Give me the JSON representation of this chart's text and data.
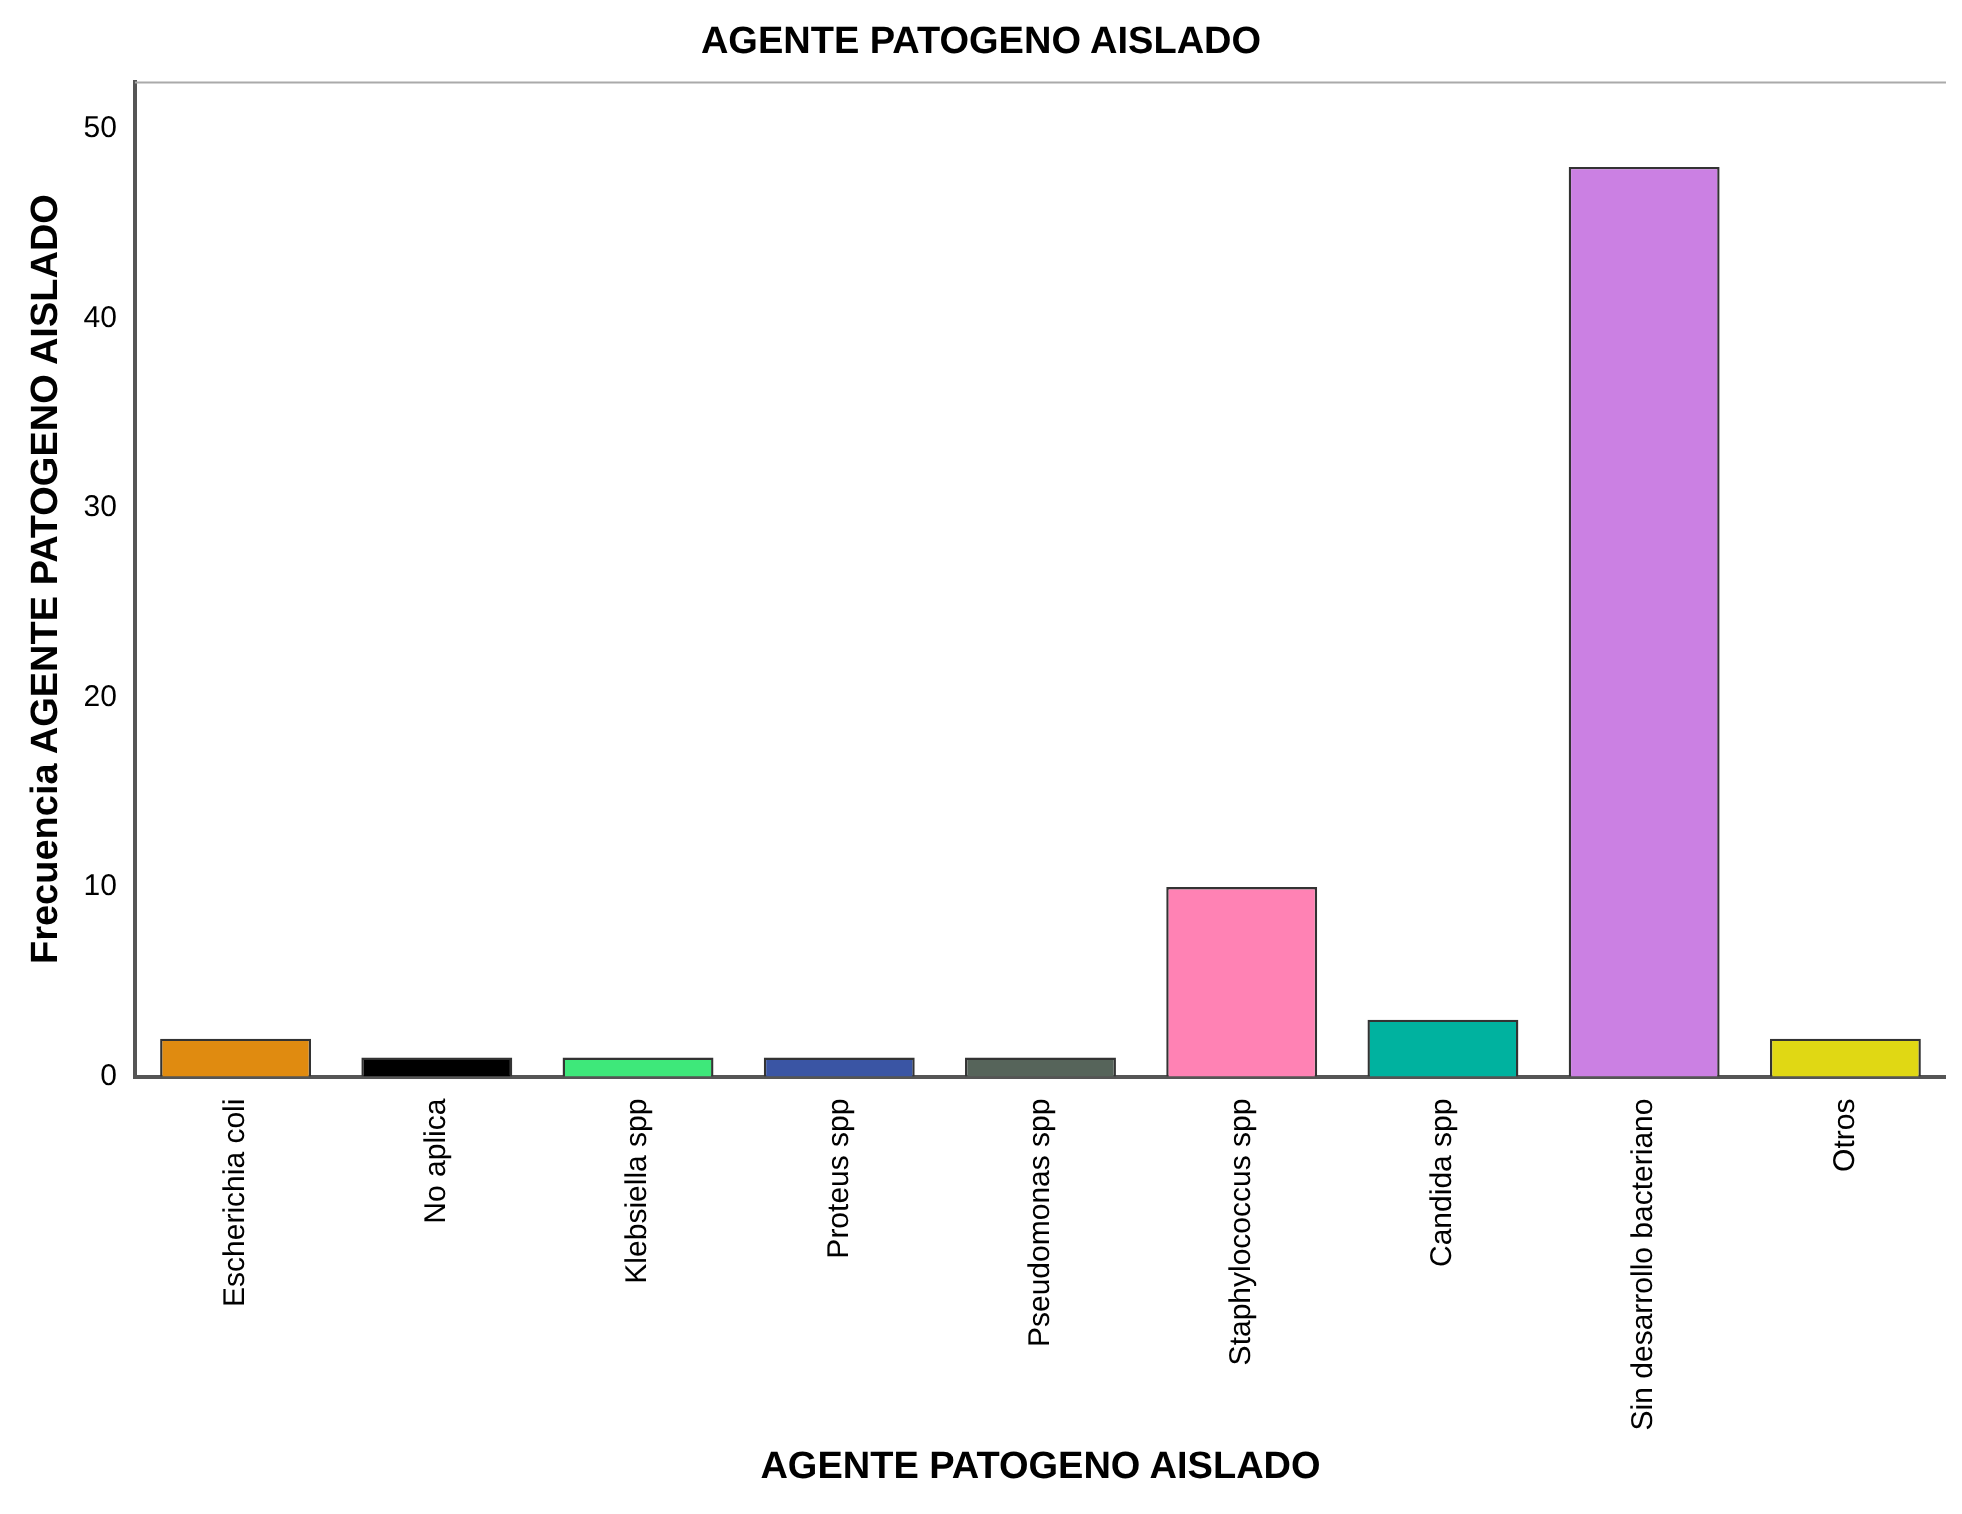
{
  "chart_data": {
    "type": "bar",
    "title": "AGENTE PATOGENO AISLADO",
    "xlabel": "AGENTE PATOGENO AISLADO",
    "ylabel": "Frecuencia AGENTE PATOGENO AISLADO",
    "categories": [
      "Escherichia coli",
      "No aplica",
      "Klebsiella spp",
      "Proteus spp",
      "Pseudomonas spp",
      "Staphylococcus spp",
      "Candida spp",
      "Sin desarrollo bacteriano",
      "Otros"
    ],
    "values": [
      2,
      1,
      1,
      1,
      1,
      10,
      3,
      48,
      2
    ],
    "colors": [
      "#e08b10",
      "#000000",
      "#3ee87a",
      "#3a55a4",
      "#56645a",
      "#ff82b4",
      "#00b29f",
      "#cb80e3",
      "#e0d814"
    ],
    "ylim": [
      0,
      52.5
    ],
    "yticks": [
      0,
      10,
      20,
      30,
      40,
      50
    ],
    "grid": false
  }
}
